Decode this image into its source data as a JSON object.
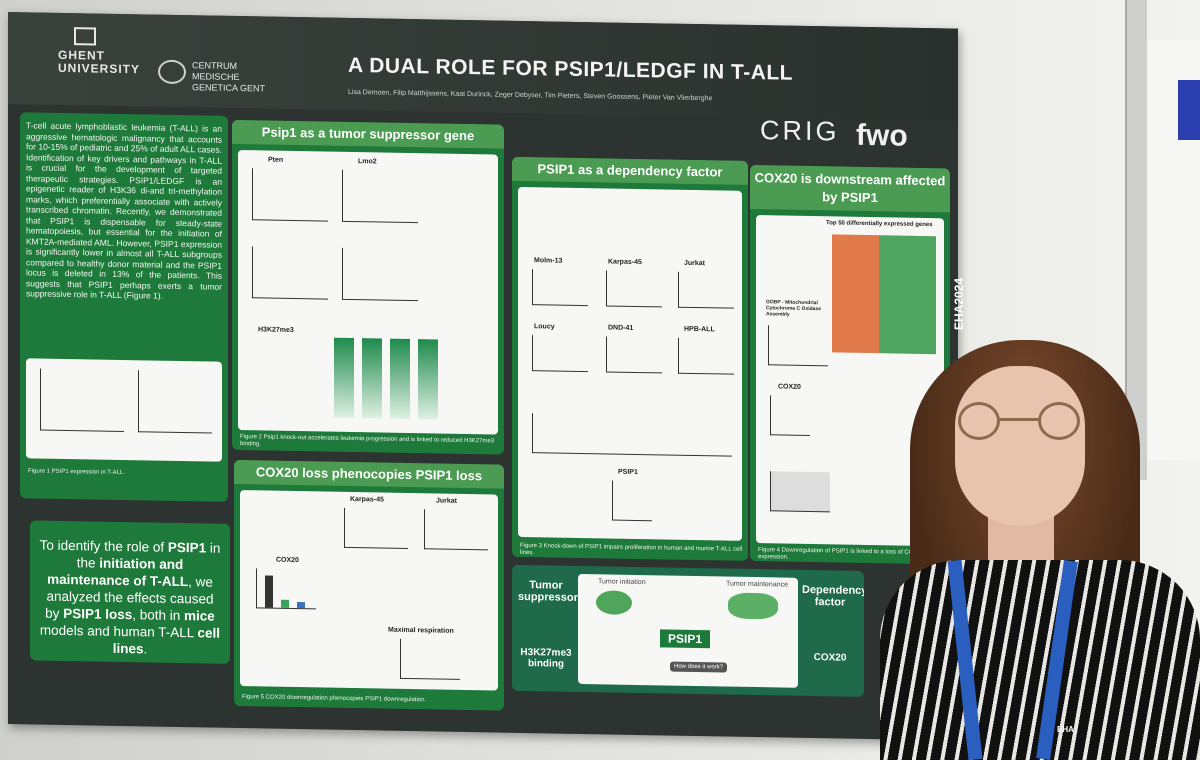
{
  "poster": {
    "university": "GHENT UNIVERSITY",
    "institute": "CENTRUM MEDISCHE GENETICA GENT",
    "title": "A DUAL ROLE FOR PSIP1/LEDGF IN T-ALL",
    "authors": "Lisa Demoen, Filip Matthijssens, Kaat Durinck, Zeger Debyser, Tim Pieters, Steven Goossens, Pieter Van Vlierberghe",
    "logos": [
      "CRIG",
      "fwo"
    ],
    "intro": "T-cell acute lymphoblastic leukemia (T-ALL) is an aggressive hematologic malignancy that accounts for 10-15% of pediatric and 25% of adult ALL cases. Identification of key drivers and pathways in T-ALL is crucial for the development of targeted therapeutic strategies. PSIP1/LEDGF is an epigenetic reader of H3K36 di-and tri-methylation marks, which preferentially associate with actively transcribed chromatin. Recently, we demonstrated that PSIP1 is dispensable for steady-state hematopoiesis, but essential for the initiation of KMT2A-mediated AML. However, PSIP1 expression is significantly lower in almost all T-ALL subgroups compared to healthy donor material and the PSIP1 locus is deleted in 13% of the patients. This suggests that PSIP1 perhaps exerts a tumor suppressive role in T-ALL (Figure 1).",
    "fig1_caption": "Figure 1 PSIP1 expression in T-ALL.",
    "aim_parts": [
      "To identify the role of ",
      "PSIP1",
      " in the ",
      "initiation and maintenance of T-ALL",
      ", we analyzed the effects caused by ",
      "PSIP1 loss",
      ", both in ",
      "mice",
      " models and human T-ALL ",
      "cell lines",
      "."
    ],
    "panels": {
      "tumor_suppressor": "Psip1 as a tumor suppressor gene",
      "dependency": "PSIP1 as a dependency factor",
      "cox20_down": "COX20 is downstream affected by PSIP1",
      "cox20_loss": "COX20 loss phenocopies PSIP1 loss"
    },
    "panel_labels": {
      "pten": "Pten",
      "lmo2": "Lmo2",
      "molm13": "Molm-13",
      "karpas45": "Karpas-45",
      "jurkat": "Jurkat",
      "loucy": "Loucy",
      "dnd41": "DND-41",
      "hpball": "HPB-ALL",
      "psip1": "PSIP1",
      "cox20": "COX20",
      "maximal_respiration": "Maximal respiration",
      "h3k27me3": "H3K27me3",
      "gobp": "GOBP - Mitochondrial Cytochrome C Oxidase Assembly",
      "top50": "Top 50 differentially expressed genes"
    },
    "captions": {
      "fig2": "Figure 2 Psip1 knock-out accelerates leukemia progression and is linked to reduced H3K27me3 binding.",
      "fig3": "Figure 3 Knock-down of PSIP1 impairs proliferation in human and murine T-ALL cell lines.",
      "fig4": "Figure 4 Downregulation of PSIP1 is linked to a loss of COX20 expression.",
      "fig5": "Figure 5 COX20 downregulation phenocopies PSIP1 downregulation."
    },
    "summary": {
      "left_top": "Tumor suppressor",
      "left_bottom": "H3K27me3 binding",
      "center": "PSIP1",
      "initiation": "Tumor initiation",
      "maintenance": "Tumor maintenance",
      "question": "How does it work?",
      "right_top": "Dependency factor",
      "right_bottom": "COX20"
    },
    "side_banner": "EHA2024"
  },
  "badge": {
    "lanyard": "EHA"
  },
  "colors": {
    "panel": "#1e7a3a",
    "panel_head": "#4b9c52",
    "poster_bg": "#2d3330"
  }
}
